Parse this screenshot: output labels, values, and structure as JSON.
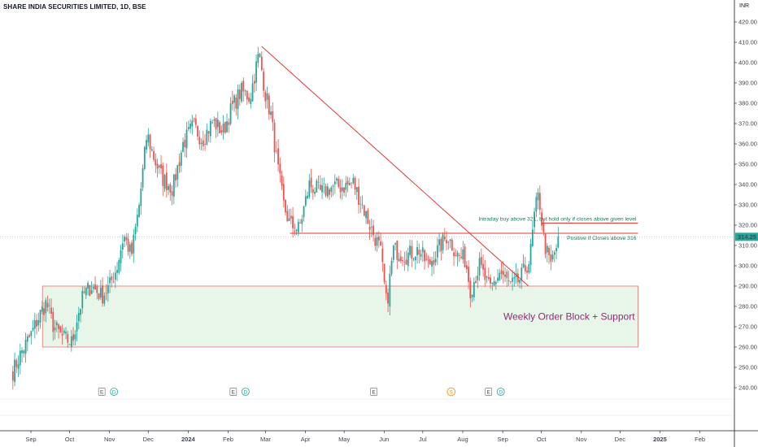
{
  "header": {
    "title": "SHARE INDIA SECURITIES LIMITED, 1D, BSE",
    "currency": "INR"
  },
  "price_label": "314.25",
  "colors": {
    "up": "#26a69a",
    "down": "#ef5350",
    "trendline": "#e53935",
    "zone_fill": "#e8f5e9",
    "zone_border": "#e57373",
    "zone_text": "#8e2d7a",
    "note_text": "#1a7a52",
    "last_price_bg": "#26a69a"
  },
  "chart_data": {
    "type": "candlestick",
    "title": "SHARE INDIA SECURITIES LIMITED, 1D, BSE",
    "y_range": [
      232,
      434
    ],
    "y_ticks": [
      420,
      410,
      400,
      390,
      380,
      370,
      360,
      350,
      340,
      330,
      320,
      310,
      300,
      290,
      280,
      270,
      260,
      250,
      240
    ],
    "x_ticks": [
      "Sep",
      "Oct",
      "Nov",
      "Dec",
      "2024",
      "Feb",
      "Mar",
      "Apr",
      "May",
      "Jun",
      "Jul",
      "Aug",
      "Sep",
      "Oct",
      "Nov",
      "Dec",
      "2025",
      "Feb"
    ],
    "x_tick_dates": [
      "2023-09-01",
      "2023-10-01",
      "2023-11-01",
      "2023-12-01",
      "2024-01-01",
      "2024-02-01",
      "2024-03-01",
      "2024-04-01",
      "2024-05-01",
      "2024-06-01",
      "2024-07-01",
      "2024-08-01",
      "2024-09-01",
      "2024-10-01",
      "2024-11-01",
      "2024-12-01",
      "2025-01-01",
      "2025-02-01"
    ],
    "close_path": [
      [
        "2023-08-18",
        248
      ],
      [
        "2023-08-25",
        258
      ],
      [
        "2023-09-01",
        266
      ],
      [
        "2023-09-08",
        276
      ],
      [
        "2023-09-13",
        282
      ],
      [
        "2023-09-18",
        271
      ],
      [
        "2023-09-25",
        265
      ],
      [
        "2023-10-03",
        262
      ],
      [
        "2023-10-07",
        275
      ],
      [
        "2023-10-12",
        286
      ],
      [
        "2023-10-18",
        290
      ],
      [
        "2023-10-26",
        285
      ],
      [
        "2023-11-01",
        290
      ],
      [
        "2023-11-07",
        300
      ],
      [
        "2023-11-12",
        315
      ],
      [
        "2023-11-18",
        305
      ],
      [
        "2023-11-24",
        330
      ],
      [
        "2023-11-30",
        365
      ],
      [
        "2023-12-06",
        352
      ],
      [
        "2023-12-12",
        343
      ],
      [
        "2023-12-20",
        338
      ],
      [
        "2023-12-28",
        360
      ],
      [
        "2024-01-05",
        369
      ],
      [
        "2024-01-12",
        362
      ],
      [
        "2024-01-20",
        371
      ],
      [
        "2024-01-28",
        366
      ],
      [
        "2024-02-04",
        378
      ],
      [
        "2024-02-11",
        386
      ],
      [
        "2024-02-18",
        383
      ],
      [
        "2024-02-25",
        405
      ],
      [
        "2024-03-01",
        384
      ],
      [
        "2024-03-05",
        375
      ],
      [
        "2024-03-10",
        350
      ],
      [
        "2024-03-15",
        330
      ],
      [
        "2024-03-20",
        320
      ],
      [
        "2024-03-27",
        318
      ],
      [
        "2024-04-04",
        340
      ],
      [
        "2024-04-13",
        336
      ],
      [
        "2024-04-22",
        339
      ],
      [
        "2024-05-01",
        339
      ],
      [
        "2024-05-08",
        341
      ],
      [
        "2024-05-15",
        330
      ],
      [
        "2024-05-22",
        318
      ],
      [
        "2024-05-29",
        308
      ],
      [
        "2024-06-03",
        280
      ],
      [
        "2024-06-08",
        308
      ],
      [
        "2024-06-18",
        305
      ],
      [
        "2024-06-28",
        308
      ],
      [
        "2024-07-05",
        300
      ],
      [
        "2024-07-12",
        307
      ],
      [
        "2024-07-20",
        315
      ],
      [
        "2024-07-28",
        305
      ],
      [
        "2024-08-03",
        303
      ],
      [
        "2024-08-07",
        288
      ],
      [
        "2024-08-14",
        300
      ],
      [
        "2024-08-22",
        288
      ],
      [
        "2024-08-30",
        297
      ],
      [
        "2024-09-07",
        290
      ],
      [
        "2024-09-14",
        293
      ],
      [
        "2024-09-22",
        303
      ],
      [
        "2024-09-26",
        327
      ],
      [
        "2024-09-29",
        335
      ],
      [
        "2024-10-03",
        312
      ],
      [
        "2024-10-08",
        300
      ],
      [
        "2024-10-12",
        308
      ],
      [
        "2024-10-15",
        314.25
      ]
    ],
    "trendline": [
      [
        "2024-02-27",
        408
      ],
      [
        "2024-09-21",
        290
      ]
    ],
    "horizontal_levels": [
      {
        "price": 321,
        "from": "2024-10-01",
        "to": "2024-12-15",
        "label": "Intraday buy above 321, but hold only if closes above given level"
      },
      {
        "price": 316,
        "from": "2024-03-20",
        "to": "2024-12-15",
        "label": "Positive if Closes above 316"
      }
    ],
    "zone": {
      "from": "2023-09-10",
      "to": "2024-12-15",
      "top": 290,
      "bottom": 260,
      "label": "Weekly Order Block + Support"
    },
    "last_price": 314.25,
    "events": [
      {
        "date": "2023-10-26",
        "marks": [
          "E",
          "D"
        ]
      },
      {
        "date": "2024-02-05",
        "marks": [
          "E",
          "D"
        ]
      },
      {
        "date": "2024-05-24",
        "marks": [
          "E"
        ]
      },
      {
        "date": "2024-07-23",
        "marks": [
          "S"
        ]
      },
      {
        "date": "2024-08-21",
        "marks": [
          "E",
          "D"
        ]
      }
    ]
  }
}
